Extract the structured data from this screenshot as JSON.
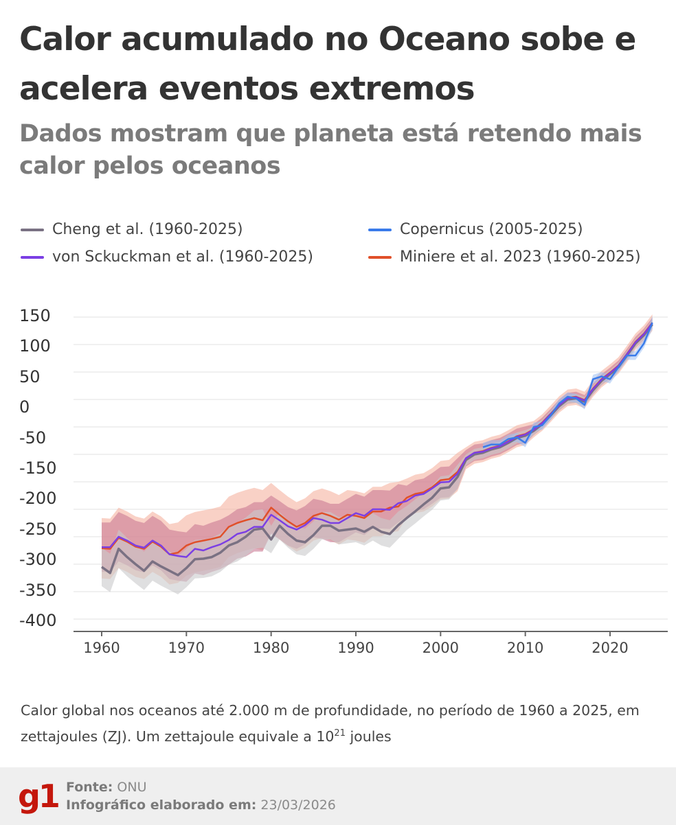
{
  "title": "Calor acumulado no Oceano sobe e acelera eventos extremos",
  "subtitle": "Dados mostram que planeta está retendo mais calor pelos oceanos",
  "caption": {
    "text_before": "Calor global nos oceanos até 2.000 m de profundidade, no período de 1960 a 2025, em zettajoules (ZJ). Um zettajoule equivale a 10",
    "superscript": "21",
    "text_after": " joules"
  },
  "footer": {
    "logo": "g1",
    "source_label": "Fonte:",
    "source_value": "ONU",
    "date_label": "Infográfico elaborado em:",
    "date_value": "23/03/2026"
  },
  "chart_data": {
    "type": "line",
    "title": "",
    "xlabel": "",
    "ylabel": "",
    "xlim": [
      1960,
      2025
    ],
    "ylim": [
      -400,
      150
    ],
    "grid": true,
    "legend_position": "top",
    "x_ticks": [
      "1960",
      "1970",
      "1980",
      "1990",
      "2000",
      "2010",
      "2020"
    ],
    "y_tick_labels": [
      "150",
      "100",
      "50",
      "0",
      "-50",
      "-150",
      "-200",
      "-250",
      "-300",
      "-350",
      "-400"
    ],
    "series": [
      {
        "name": "Miniere et al. 2023 (1960-2025)",
        "color": "#e0502a",
        "band_color": "#f5b3a0",
        "start_year": 1960,
        "values": [
          -271,
          -272,
          -252,
          -259,
          -268,
          -272,
          -259,
          -268,
          -282,
          -279,
          -266,
          -260,
          -257,
          -254,
          -250,
          -232,
          -225,
          -220,
          -216,
          -220,
          -197,
          -210,
          -222,
          -232,
          -225,
          -212,
          -207,
          -212,
          -219,
          -210,
          -212,
          -216,
          -204,
          -204,
          -197,
          -195,
          -179,
          -172,
          -169,
          -160,
          -147,
          -145,
          -132,
          -107,
          -97,
          -94,
          -88,
          -84,
          -76,
          -67,
          -63,
          -54,
          -42,
          -26,
          -9,
          3,
          5,
          -1,
          20,
          37,
          49,
          62,
          83,
          105,
          120,
          140
        ],
        "uncertainty": [
          55,
          55,
          55,
          55,
          55,
          55,
          55,
          55,
          55,
          55,
          55,
          55,
          55,
          55,
          55,
          55,
          55,
          55,
          55,
          55,
          45,
          45,
          45,
          45,
          45,
          45,
          45,
          45,
          45,
          45,
          45,
          45,
          45,
          45,
          45,
          45,
          35,
          35,
          35,
          35,
          35,
          35,
          35,
          20,
          20,
          20,
          20,
          20,
          20,
          20,
          20,
          15,
          15,
          15,
          15,
          15,
          15,
          15,
          15,
          15,
          15,
          15,
          15,
          15,
          15,
          15
        ]
      },
      {
        "name": "von Sckuckman et al. (1960-2025)",
        "color": "#7b3fe4",
        "band_color": "#c97a95",
        "start_year": 1960,
        "values": [
          -269,
          -269,
          -250,
          -257,
          -266,
          -270,
          -257,
          -266,
          -282,
          -285,
          -287,
          -272,
          -275,
          -269,
          -264,
          -256,
          -245,
          -241,
          -232,
          -232,
          -210,
          -220,
          -231,
          -237,
          -229,
          -216,
          -219,
          -225,
          -225,
          -216,
          -207,
          -212,
          -200,
          -200,
          -201,
          -189,
          -185,
          -175,
          -172,
          -162,
          -151,
          -150,
          -135,
          -107,
          -97,
          -95,
          -89,
          -85,
          -77,
          -68,
          -64,
          -55,
          -43,
          -27,
          -10,
          2,
          4,
          -2,
          19,
          36,
          48,
          61,
          82,
          104,
          119,
          139
        ],
        "uncertainty": [
          45,
          45,
          45,
          45,
          45,
          45,
          45,
          45,
          45,
          45,
          45,
          45,
          45,
          45,
          45,
          45,
          45,
          45,
          45,
          45,
          35,
          35,
          35,
          35,
          35,
          35,
          35,
          35,
          35,
          35,
          35,
          35,
          35,
          35,
          35,
          35,
          28,
          28,
          28,
          28,
          28,
          28,
          28,
          15,
          15,
          15,
          15,
          15,
          15,
          15,
          15,
          10,
          10,
          10,
          10,
          10,
          10,
          10,
          10,
          10,
          10,
          10,
          10,
          10,
          10,
          10
        ]
      },
      {
        "name": "Cheng et al. (1960-2025)",
        "color": "#7a7183",
        "band_color": "#c9c9cc",
        "start_year": 1960,
        "values": [
          -305,
          -316,
          -272,
          -287,
          -300,
          -312,
          -295,
          -304,
          -312,
          -320,
          -307,
          -291,
          -290,
          -287,
          -279,
          -266,
          -260,
          -250,
          -237,
          -235,
          -255,
          -230,
          -245,
          -257,
          -260,
          -247,
          -230,
          -230,
          -239,
          -237,
          -235,
          -241,
          -232,
          -241,
          -245,
          -229,
          -216,
          -204,
          -191,
          -179,
          -162,
          -160,
          -141,
          -110,
          -100,
          -97,
          -91,
          -87,
          -79,
          -70,
          -66,
          -57,
          -45,
          -29,
          -12,
          0,
          2,
          -4,
          17,
          34,
          46,
          59,
          80,
          102,
          117,
          137
        ],
        "uncertainty": [
          35,
          35,
          35,
          35,
          35,
          35,
          35,
          35,
          35,
          35,
          35,
          35,
          35,
          35,
          35,
          35,
          35,
          35,
          35,
          35,
          25,
          25,
          25,
          25,
          25,
          25,
          25,
          25,
          25,
          25,
          25,
          25,
          25,
          25,
          25,
          25,
          22,
          22,
          22,
          22,
          22,
          22,
          22,
          10,
          10,
          10,
          10,
          10,
          10,
          10,
          10,
          8,
          8,
          8,
          8,
          8,
          8,
          8,
          8,
          8,
          8,
          8,
          8,
          8,
          8,
          8
        ]
      },
      {
        "name": "Copernicus (2005-2025)",
        "color": "#3a7bea",
        "band_color": "#9cc0f2",
        "start_year": 2005,
        "values": [
          -87,
          -82,
          -82,
          -72,
          -69,
          -79,
          -50,
          -47,
          -29,
          -7,
          5,
          2,
          -10,
          37,
          42,
          37,
          59,
          80,
          80,
          102,
          140
        ],
        "uncertainty": [
          8,
          8,
          8,
          8,
          8,
          8,
          8,
          8,
          8,
          8,
          8,
          8,
          8,
          8,
          8,
          8,
          8,
          8,
          8,
          8,
          12
        ]
      }
    ]
  }
}
